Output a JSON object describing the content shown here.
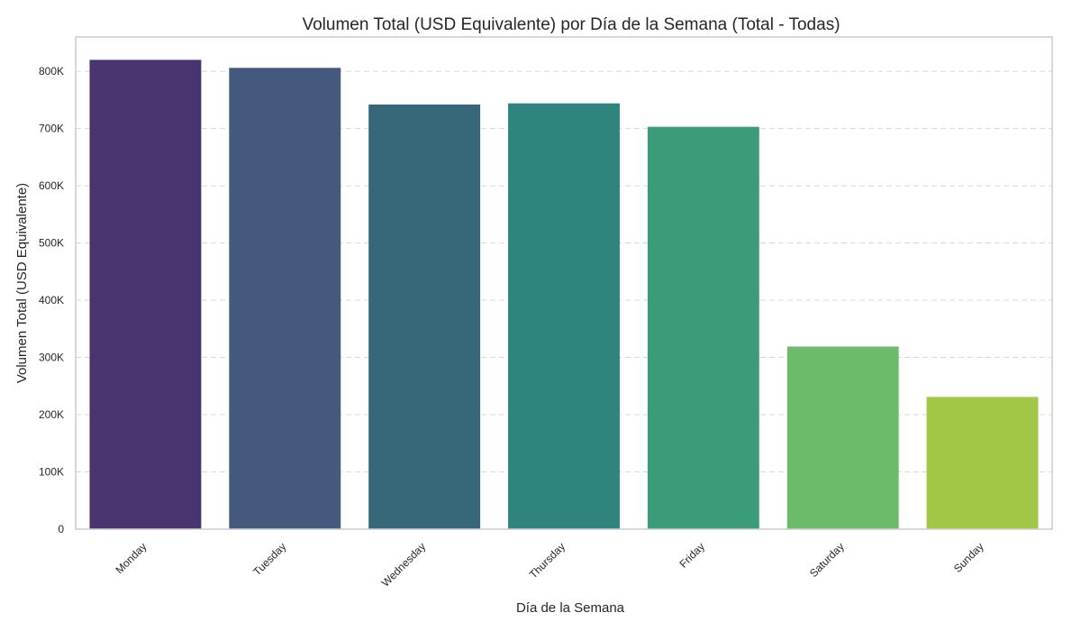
{
  "chart_data": {
    "type": "bar",
    "title": "Volumen Total (USD Equivalente) por Día de la Semana (Total - Todas)",
    "xlabel": "Día de la Semana",
    "ylabel": "Volumen Total (USD Equivalente)",
    "categories": [
      "Monday",
      "Tuesday",
      "Wednesday",
      "Thursday",
      "Friday",
      "Saturday",
      "Sunday"
    ],
    "values": [
      820000,
      806000,
      742000,
      744000,
      703000,
      319000,
      231000
    ],
    "colors": [
      "#48346f",
      "#45587e",
      "#37687a",
      "#2f847d",
      "#3a9c78",
      "#6cbb6b",
      "#a2c746"
    ],
    "ylim": [
      0,
      860000
    ],
    "yticks": [
      {
        "value": 0,
        "label": "0"
      },
      {
        "value": 100000,
        "label": "100K"
      },
      {
        "value": 200000,
        "label": "200K"
      },
      {
        "value": 300000,
        "label": "300K"
      },
      {
        "value": 400000,
        "label": "400K"
      },
      {
        "value": 500000,
        "label": "500K"
      },
      {
        "value": 600000,
        "label": "600K"
      },
      {
        "value": 700000,
        "label": "700K"
      },
      {
        "value": 800000,
        "label": "800K"
      }
    ],
    "grid": true,
    "grid_axis": "y",
    "legend": "none"
  }
}
